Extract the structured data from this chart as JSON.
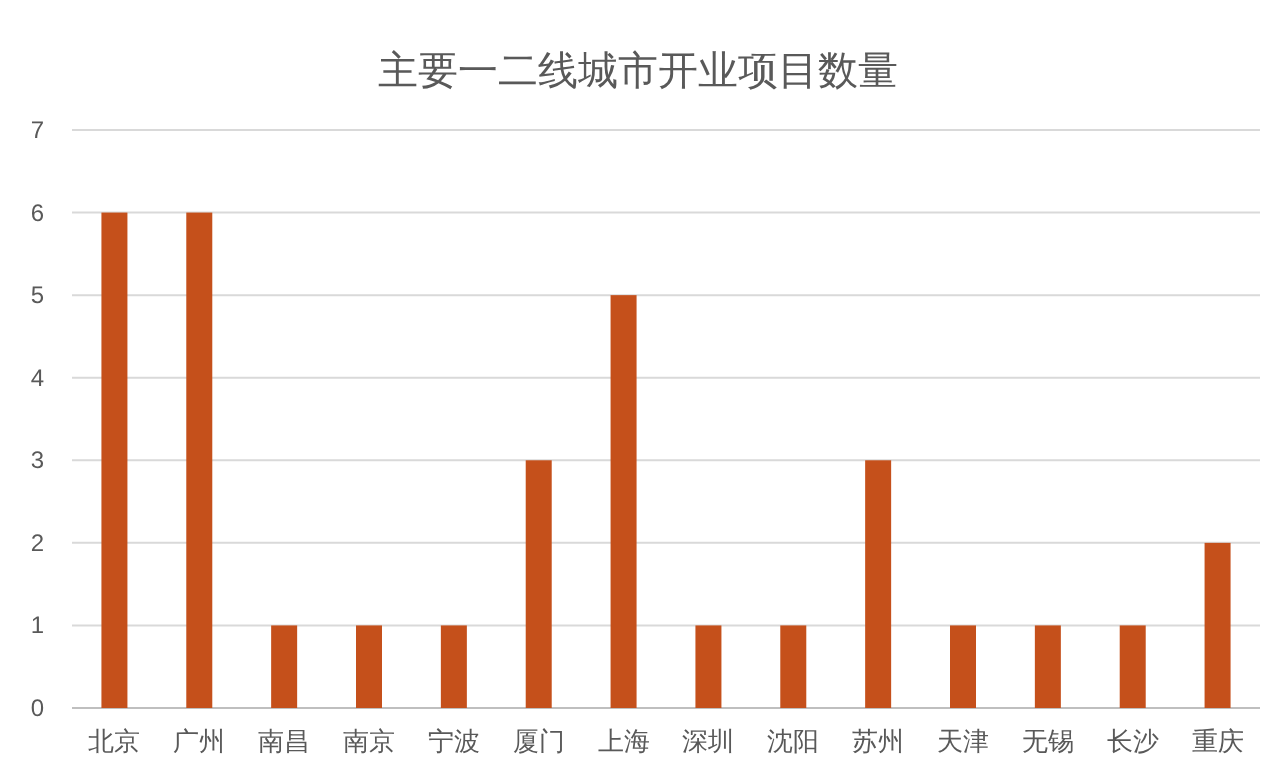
{
  "chart_data": {
    "type": "bar",
    "title": "主要一二线城市开业项目数量",
    "categories": [
      "北京",
      "广州",
      "南昌",
      "南京",
      "宁波",
      "厦门",
      "上海",
      "深圳",
      "沈阳",
      "苏州",
      "天津",
      "无锡",
      "长沙",
      "重庆"
    ],
    "values": [
      6,
      6,
      1,
      1,
      1,
      3,
      5,
      1,
      1,
      3,
      1,
      1,
      1,
      2
    ],
    "color": "#c5501b",
    "ylim": [
      0,
      7
    ],
    "yticks": [
      0,
      1,
      2,
      3,
      4,
      5,
      6,
      7
    ],
    "grid": "y"
  }
}
